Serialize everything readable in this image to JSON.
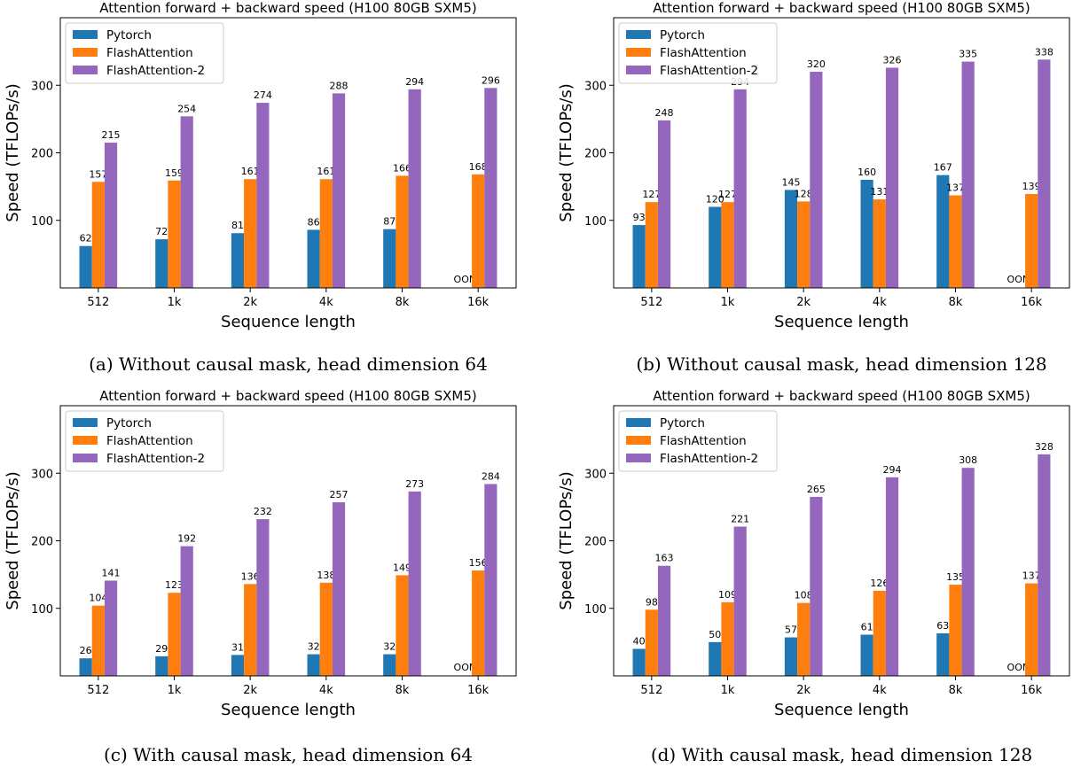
{
  "colors": {
    "pytorch": "#1f77b4",
    "flashattention": "#ff7f0e",
    "flashattention2": "#9467bd"
  },
  "chart_data": [
    {
      "id": "a",
      "type": "bar",
      "title": "Attention forward + backward speed (H100 80GB SXM5)",
      "caption": "(a) Without causal mask, head dimension 64",
      "xlabel": "Sequence length",
      "ylabel": "Speed (TFLOPs/s)",
      "ylim": [
        0,
        400
      ],
      "yticks": [
        100,
        200,
        300
      ],
      "categories": [
        "512",
        "1k",
        "2k",
        "4k",
        "8k",
        "16k"
      ],
      "legend_position": "top-left",
      "series": [
        {
          "name": "Pytorch",
          "values": [
            62,
            72,
            81,
            86,
            87,
            null
          ],
          "labels": [
            "62",
            "72",
            "81",
            "86",
            "87",
            "OOM"
          ]
        },
        {
          "name": "FlashAttention",
          "values": [
            157,
            159,
            161,
            161,
            166,
            168
          ],
          "labels": [
            "157",
            "159",
            "161",
            "161",
            "166",
            "168"
          ]
        },
        {
          "name": "FlashAttention-2",
          "values": [
            215,
            254,
            274,
            288,
            294,
            296
          ],
          "labels": [
            "215",
            "254",
            "274",
            "288",
            "294",
            "296"
          ]
        }
      ]
    },
    {
      "id": "b",
      "type": "bar",
      "title": "Attention forward + backward speed (H100 80GB SXM5)",
      "caption": "(b) Without causal mask, head dimension 128",
      "xlabel": "Sequence length",
      "ylabel": "Speed (TFLOPs/s)",
      "ylim": [
        0,
        400
      ],
      "yticks": [
        100,
        200,
        300
      ],
      "categories": [
        "512",
        "1k",
        "2k",
        "4k",
        "8k",
        "16k"
      ],
      "legend_position": "top-left",
      "series": [
        {
          "name": "Pytorch",
          "values": [
            93,
            120,
            145,
            160,
            167,
            null
          ],
          "labels": [
            "93",
            "120",
            "145",
            "160",
            "167",
            "OOM"
          ]
        },
        {
          "name": "FlashAttention",
          "values": [
            127,
            127,
            128,
            131,
            137,
            139
          ],
          "labels": [
            "127",
            "127",
            "128",
            "131",
            "137",
            "139"
          ]
        },
        {
          "name": "FlashAttention-2",
          "values": [
            248,
            294,
            320,
            326,
            335,
            338
          ],
          "labels": [
            "248",
            "294",
            "320",
            "326",
            "335",
            "338"
          ]
        }
      ]
    },
    {
      "id": "c",
      "type": "bar",
      "title": "Attention forward + backward speed (H100 80GB SXM5)",
      "caption": "(c) With causal mask, head dimension 64",
      "xlabel": "Sequence length",
      "ylabel": "Speed (TFLOPs/s)",
      "ylim": [
        0,
        400
      ],
      "yticks": [
        100,
        200,
        300
      ],
      "categories": [
        "512",
        "1k",
        "2k",
        "4k",
        "8k",
        "16k"
      ],
      "legend_position": "top-left",
      "series": [
        {
          "name": "Pytorch",
          "values": [
            26,
            29,
            31,
            32,
            32,
            null
          ],
          "labels": [
            "26",
            "29",
            "31",
            "32",
            "32",
            "OOM"
          ]
        },
        {
          "name": "FlashAttention",
          "values": [
            104,
            123,
            136,
            138,
            149,
            156
          ],
          "labels": [
            "104",
            "123",
            "136",
            "138",
            "149",
            "156"
          ]
        },
        {
          "name": "FlashAttention-2",
          "values": [
            141,
            192,
            232,
            257,
            273,
            284
          ],
          "labels": [
            "141",
            "192",
            "232",
            "257",
            "273",
            "284"
          ]
        }
      ]
    },
    {
      "id": "d",
      "type": "bar",
      "title": "Attention forward + backward speed (H100 80GB SXM5)",
      "caption": "(d) With causal mask, head dimension 128",
      "xlabel": "Sequence length",
      "ylabel": "Speed (TFLOPs/s)",
      "ylim": [
        0,
        400
      ],
      "yticks": [
        100,
        200,
        300
      ],
      "categories": [
        "512",
        "1k",
        "2k",
        "4k",
        "8k",
        "16k"
      ],
      "legend_position": "top-left",
      "series": [
        {
          "name": "Pytorch",
          "values": [
            40,
            50,
            57,
            61,
            63,
            null
          ],
          "labels": [
            "40",
            "50",
            "57",
            "61",
            "63",
            "OOM"
          ]
        },
        {
          "name": "FlashAttention",
          "values": [
            98,
            109,
            108,
            126,
            135,
            137
          ],
          "labels": [
            "98",
            "109",
            "108",
            "126",
            "135",
            "137"
          ]
        },
        {
          "name": "FlashAttention-2",
          "values": [
            163,
            221,
            265,
            294,
            308,
            328
          ],
          "labels": [
            "163",
            "221",
            "265",
            "294",
            "308",
            "328"
          ]
        }
      ]
    }
  ]
}
